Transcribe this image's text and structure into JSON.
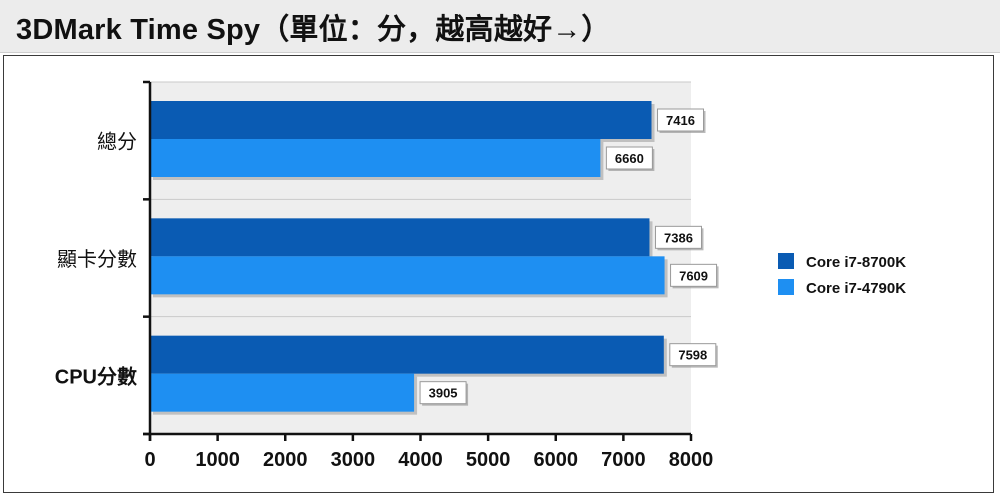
{
  "title": "3DMark Time Spy（單位：分，越高越好→）",
  "chart_data": {
    "type": "bar",
    "orientation": "horizontal",
    "categories": [
      "總分",
      "顯卡分數",
      "CPU分數"
    ],
    "series": [
      {
        "name": "Core i7-8700K",
        "color": "#0a5bb3",
        "values": [
          7416,
          7386,
          7598
        ]
      },
      {
        "name": "Core i7-4790K",
        "color": "#1e8ff2",
        "values": [
          6660,
          7609,
          3905
        ]
      }
    ],
    "xlim": [
      0,
      8000
    ],
    "xticks": [
      "0",
      "1000",
      "2000",
      "3000",
      "4000",
      "5000",
      "6000",
      "7000",
      "8000"
    ],
    "grid": true,
    "legend_position": "right",
    "plot_background": "#eeeeee"
  }
}
